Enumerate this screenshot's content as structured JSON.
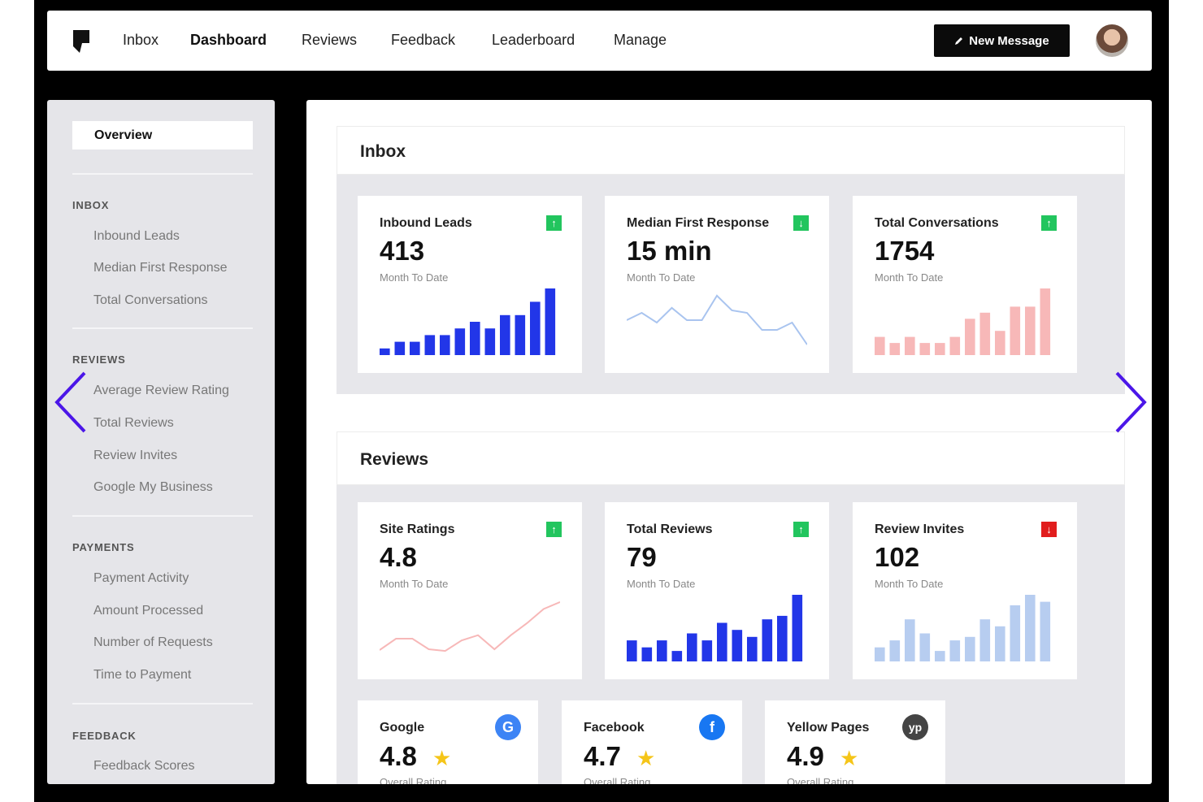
{
  "topnav": {
    "items": [
      "Inbox",
      "Dashboard",
      "Reviews",
      "Feedback",
      "Leaderboard",
      "Manage"
    ],
    "active": "Dashboard",
    "new_message_label": "New Message"
  },
  "sidebar": {
    "overview_label": "Overview",
    "groups": [
      {
        "heading": "INBOX",
        "items": [
          "Inbound Leads",
          "Median First Response",
          "Total Conversations"
        ]
      },
      {
        "heading": "REVIEWS",
        "items": [
          "Average Review Rating",
          "Total Reviews",
          "Review Invites",
          "Google My Business"
        ]
      },
      {
        "heading": "PAYMENTS",
        "items": [
          "Payment Activity",
          "Amount Processed",
          "Number of Requests",
          "Time to Payment"
        ]
      },
      {
        "heading": "FEEDBACK",
        "items": [
          "Feedback Scores"
        ]
      }
    ]
  },
  "inbox": {
    "title": "Inbox",
    "cards": [
      {
        "title": "Inbound Leads",
        "value": "413",
        "sub": "Month To Date",
        "trend": "up"
      },
      {
        "title": "Median First Response",
        "value": "15 min",
        "sub": "Month To Date",
        "trend": "down"
      },
      {
        "title": "Total Conversations",
        "value": "1754",
        "sub": "Month To Date",
        "trend": "up"
      }
    ]
  },
  "reviews": {
    "title": "Reviews",
    "cards": [
      {
        "title": "Site Ratings",
        "value": "4.8",
        "sub": "Month To Date",
        "trend": "up"
      },
      {
        "title": "Total Reviews",
        "value": "79",
        "sub": "Month To Date",
        "trend": "up"
      },
      {
        "title": "Review Invites",
        "value": "102",
        "sub": "Month To Date",
        "trend": "down"
      }
    ],
    "sources": [
      {
        "name": "Google",
        "rating": "4.8",
        "sub": "Overall Rating",
        "icon": "G"
      },
      {
        "name": "Facebook",
        "rating": "4.7",
        "sub": "Overall Rating",
        "icon": "f"
      },
      {
        "name": "Yellow Pages",
        "rating": "4.9",
        "sub": "Overall Rating",
        "icon": "yp"
      }
    ]
  },
  "sparklines": {
    "inbound_leads": {
      "type": "bar",
      "color": "#2236e8",
      "values": [
        1,
        2,
        2,
        3,
        3,
        4,
        5,
        4,
        6,
        6,
        8,
        10
      ]
    },
    "median_first_response": {
      "type": "line",
      "color": "#a9c4ef",
      "values": [
        5,
        5.6,
        4.8,
        6,
        5,
        5,
        7,
        5.8,
        5.6,
        4.2,
        4.2,
        4.8,
        3
      ]
    },
    "total_conversations": {
      "type": "bar",
      "color": "#f7b8b8",
      "values": [
        3,
        2,
        3,
        2,
        2,
        3,
        6,
        7,
        4,
        8,
        8,
        11
      ]
    },
    "site_ratings": {
      "type": "line",
      "color": "#f7b8b8",
      "values": [
        1.5,
        2.8,
        2.8,
        1.6,
        1.4,
        2.6,
        3.2,
        1.6,
        3.2,
        4.6,
        6.2,
        7
      ]
    },
    "total_reviews": {
      "type": "bar",
      "color": "#2236e8",
      "values": [
        3,
        2,
        3,
        1.5,
        4,
        3,
        5.5,
        4.5,
        3.5,
        6,
        6.5,
        9.5
      ]
    },
    "review_invites": {
      "type": "bar",
      "color": "#b7cdf0",
      "values": [
        2,
        3,
        6,
        4,
        1.5,
        3,
        3.5,
        6,
        5,
        8,
        9.5,
        8.5
      ]
    }
  },
  "colors": {
    "accent_blue": "#2236e8",
    "trend_up": "#22c55e",
    "trend_down_bad": "#e11d1d",
    "carousel_arrow": "#4b16e8",
    "star": "#f5c518"
  }
}
